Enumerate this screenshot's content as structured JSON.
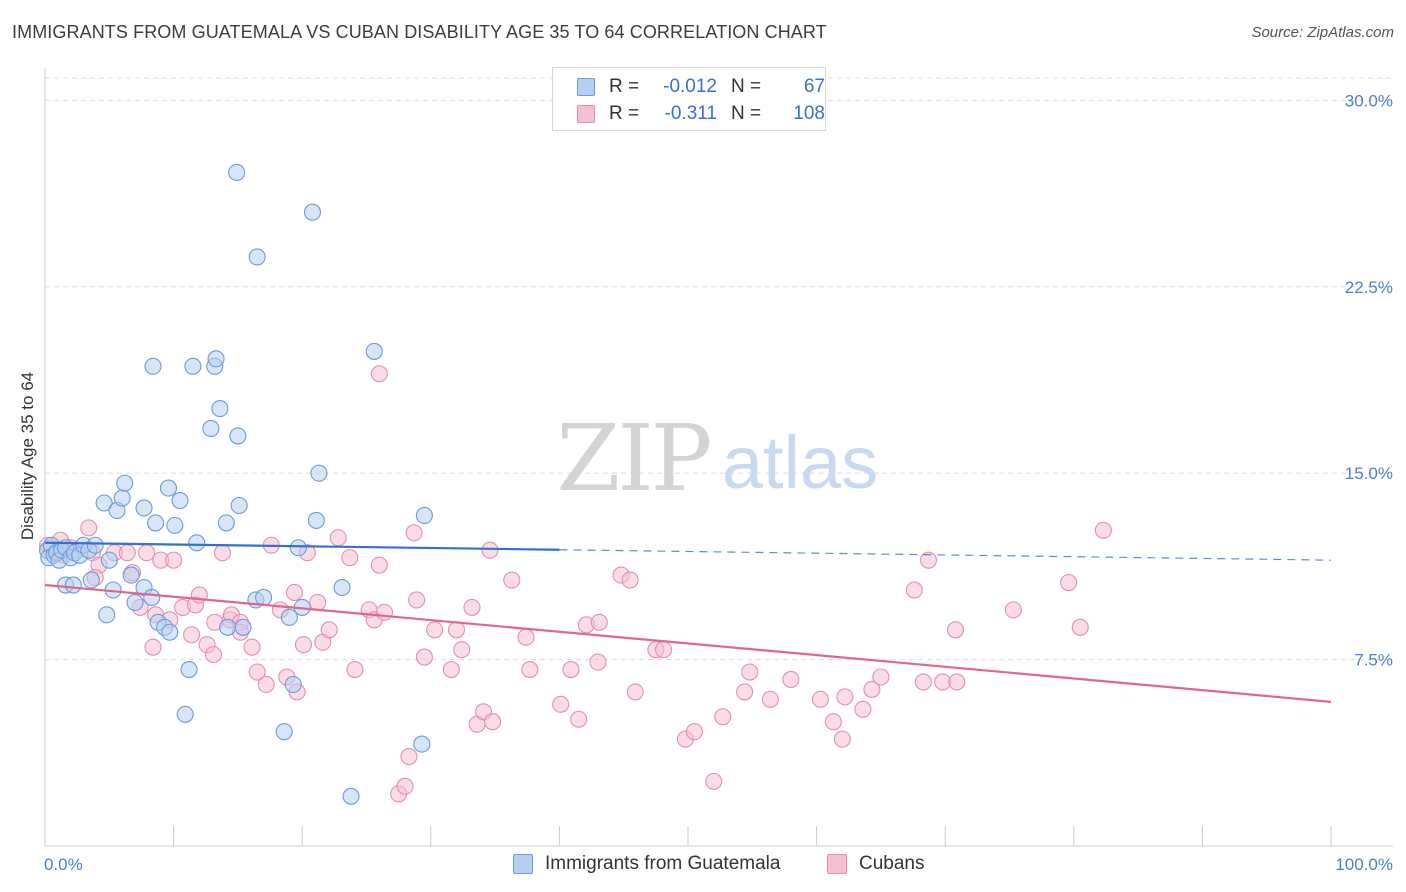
{
  "title": "IMMIGRANTS FROM GUATEMALA VS CUBAN DISABILITY AGE 35 TO 64 CORRELATION CHART",
  "source": "Source: ZipAtlas.com",
  "watermark": {
    "zip": "ZIP",
    "atlas": "atlas"
  },
  "legend": {
    "rows": [
      {
        "r_label": "R =",
        "r_value": "-0.012",
        "n_label": "N =",
        "n_value": "67"
      },
      {
        "r_label": "R =",
        "r_value": "-0.311",
        "n_label": "N =",
        "n_value": "108"
      }
    ]
  },
  "colors": {
    "blue_fill": "#b5cff2",
    "blue_stroke": "#6f9ad8",
    "blue_line": "#3272cc",
    "pink_fill": "#f6bfd2",
    "pink_stroke": "#e58fad",
    "pink_line": "#e0668f",
    "grid": "#dcdcdc",
    "axis_label": "#4d7fce"
  },
  "chart_data": {
    "type": "scatter",
    "title": "IMMIGRANTS FROM GUATEMALA VS CUBAN DISABILITY AGE 35 TO 64 CORRELATION CHART",
    "xlabel": "",
    "ylabel": "Disability Age 35 to 64",
    "xlim": [
      0,
      100
    ],
    "ylim": [
      0,
      30.9
    ],
    "x_tick_labels": [
      "0.0%",
      "100.0%"
    ],
    "y_ticks": [
      7.5,
      15.0,
      22.5,
      30.0
    ],
    "y_tick_labels": [
      "7.5%",
      "15.0%",
      "22.5%",
      "30.0%"
    ],
    "grid": true,
    "legend_position": "top-center",
    "series": [
      {
        "name": "Immigrants from Guatemala",
        "color": "blue",
        "trend": {
          "x": [
            0,
            100
          ],
          "y": [
            12.2,
            11.5
          ],
          "solid_until_x": 40
        },
        "points": [
          [
            0.2,
            11.9
          ],
          [
            0.3,
            11.6
          ],
          [
            0.5,
            12.1
          ],
          [
            0.7,
            11.7
          ],
          [
            0.9,
            11.8
          ],
          [
            1.1,
            11.5
          ],
          [
            1.3,
            11.9
          ],
          [
            1.6,
            12.0
          ],
          [
            2.0,
            11.6
          ],
          [
            2.3,
            11.8
          ],
          [
            2.7,
            11.7
          ],
          [
            3.0,
            12.1
          ],
          [
            3.4,
            11.9
          ],
          [
            1.6,
            10.5
          ],
          [
            2.2,
            10.5
          ],
          [
            3.6,
            10.7
          ],
          [
            5.0,
            11.5
          ],
          [
            5.3,
            10.3
          ],
          [
            6.7,
            10.9
          ],
          [
            7.7,
            10.4
          ],
          [
            8.3,
            10.0
          ],
          [
            3.9,
            12.1
          ],
          [
            4.6,
            13.8
          ],
          [
            5.6,
            13.5
          ],
          [
            6.0,
            14.0
          ],
          [
            6.2,
            14.6
          ],
          [
            7.7,
            13.6
          ],
          [
            8.6,
            13.0
          ],
          [
            9.6,
            14.4
          ],
          [
            10.1,
            12.9
          ],
          [
            10.5,
            13.9
          ],
          [
            11.8,
            12.2
          ],
          [
            14.1,
            13.0
          ],
          [
            15.1,
            13.7
          ],
          [
            4.8,
            9.3
          ],
          [
            7.0,
            9.8
          ],
          [
            8.8,
            9.0
          ],
          [
            9.3,
            8.8
          ],
          [
            9.7,
            8.6
          ],
          [
            10.9,
            5.3
          ],
          [
            11.2,
            7.1
          ],
          [
            14.2,
            8.8
          ],
          [
            15.4,
            8.8
          ],
          [
            16.4,
            9.9
          ],
          [
            17.0,
            10.0
          ],
          [
            19.0,
            9.2
          ],
          [
            19.3,
            6.5
          ],
          [
            19.7,
            12.0
          ],
          [
            20.0,
            9.6
          ],
          [
            21.1,
            13.1
          ],
          [
            21.3,
            15.0
          ],
          [
            23.1,
            10.4
          ],
          [
            25.6,
            19.9
          ],
          [
            23.8,
            2.0
          ],
          [
            29.5,
            13.3
          ],
          [
            29.3,
            4.1
          ],
          [
            14.9,
            27.1
          ],
          [
            20.8,
            25.5
          ],
          [
            16.5,
            23.7
          ],
          [
            8.4,
            19.3
          ],
          [
            11.5,
            19.3
          ],
          [
            13.2,
            19.3
          ],
          [
            13.3,
            19.6
          ],
          [
            13.6,
            17.6
          ],
          [
            12.9,
            16.8
          ],
          [
            15.0,
            16.5
          ],
          [
            18.6,
            4.6
          ]
        ]
      },
      {
        "name": "Cubans",
        "color": "pink",
        "trend": {
          "x": [
            0,
            100
          ],
          "y": [
            10.5,
            5.8
          ]
        },
        "points": [
          [
            0.2,
            12.1
          ],
          [
            0.5,
            12.0
          ],
          [
            0.8,
            11.8
          ],
          [
            1.2,
            12.3
          ],
          [
            1.5,
            11.7
          ],
          [
            2.0,
            12.0
          ],
          [
            2.5,
            11.9
          ],
          [
            3.4,
            12.8
          ],
          [
            3.7,
            11.8
          ],
          [
            4.2,
            11.3
          ],
          [
            5.4,
            11.8
          ],
          [
            6.4,
            11.8
          ],
          [
            7.9,
            11.8
          ],
          [
            9.0,
            11.5
          ],
          [
            10.0,
            11.5
          ],
          [
            6.8,
            11.0
          ],
          [
            3.9,
            10.8
          ],
          [
            7.4,
            9.6
          ],
          [
            8.6,
            9.3
          ],
          [
            10.7,
            9.6
          ],
          [
            11.7,
            9.7
          ],
          [
            12.0,
            10.1
          ],
          [
            13.8,
            11.8
          ],
          [
            14.4,
            9.1
          ],
          [
            14.5,
            9.3
          ],
          [
            15.2,
            9.0
          ],
          [
            15.2,
            8.6
          ],
          [
            16.1,
            8.0
          ],
          [
            16.5,
            7.0
          ],
          [
            17.6,
            12.1
          ],
          [
            18.3,
            9.5
          ],
          [
            12.6,
            8.1
          ],
          [
            13.1,
            7.7
          ],
          [
            17.2,
            6.5
          ],
          [
            18.8,
            6.8
          ],
          [
            19.4,
            10.2
          ],
          [
            19.6,
            6.2
          ],
          [
            20.4,
            11.8
          ],
          [
            21.2,
            9.8
          ],
          [
            21.6,
            8.2
          ],
          [
            22.1,
            8.7
          ],
          [
            22.8,
            12.4
          ],
          [
            23.7,
            11.6
          ],
          [
            24.1,
            7.1
          ],
          [
            25.2,
            9.5
          ],
          [
            25.6,
            9.1
          ],
          [
            26.0,
            11.3
          ],
          [
            26.4,
            9.4
          ],
          [
            26.0,
            19.0
          ],
          [
            27.5,
            2.1
          ],
          [
            28.0,
            2.4
          ],
          [
            28.3,
            3.6
          ],
          [
            28.9,
            9.9
          ],
          [
            29.5,
            7.6
          ],
          [
            28.7,
            12.6
          ],
          [
            30.3,
            8.7
          ],
          [
            31.6,
            7.1
          ],
          [
            32.0,
            8.7
          ],
          [
            32.4,
            7.9
          ],
          [
            33.2,
            9.6
          ],
          [
            33.6,
            4.9
          ],
          [
            34.1,
            5.4
          ],
          [
            34.8,
            5.0
          ],
          [
            34.6,
            11.9
          ],
          [
            36.3,
            10.7
          ],
          [
            37.4,
            8.4
          ],
          [
            37.7,
            7.1
          ],
          [
            40.1,
            5.7
          ],
          [
            40.9,
            7.1
          ],
          [
            41.5,
            5.1
          ],
          [
            42.1,
            8.9
          ],
          [
            43.0,
            7.4
          ],
          [
            43.1,
            9.0
          ],
          [
            44.8,
            10.9
          ],
          [
            45.5,
            10.7
          ],
          [
            45.9,
            6.2
          ],
          [
            47.5,
            7.9
          ],
          [
            48.1,
            7.9
          ],
          [
            49.8,
            4.3
          ],
          [
            50.5,
            4.6
          ],
          [
            52.0,
            2.6
          ],
          [
            52.7,
            5.2
          ],
          [
            54.4,
            6.2
          ],
          [
            54.8,
            7.0
          ],
          [
            56.4,
            5.9
          ],
          [
            58.0,
            6.7
          ],
          [
            60.3,
            5.9
          ],
          [
            61.3,
            5.0
          ],
          [
            62.0,
            4.3
          ],
          [
            62.2,
            6.0
          ],
          [
            63.6,
            5.5
          ],
          [
            64.3,
            6.3
          ],
          [
            65.0,
            6.8
          ],
          [
            67.6,
            10.3
          ],
          [
            68.3,
            6.6
          ],
          [
            68.7,
            11.5
          ],
          [
            69.8,
            6.6
          ],
          [
            70.8,
            8.7
          ],
          [
            70.9,
            6.6
          ],
          [
            75.3,
            9.5
          ],
          [
            79.6,
            10.6
          ],
          [
            80.5,
            8.8
          ],
          [
            82.3,
            12.7
          ],
          [
            20.1,
            8.1
          ],
          [
            8.4,
            8.0
          ],
          [
            9.7,
            9.1
          ],
          [
            11.4,
            8.5
          ],
          [
            13.2,
            9.0
          ]
        ]
      }
    ]
  },
  "bottom_legend": {
    "items": [
      {
        "label": "Immigrants from Guatemala"
      },
      {
        "label": "Cubans"
      }
    ]
  }
}
